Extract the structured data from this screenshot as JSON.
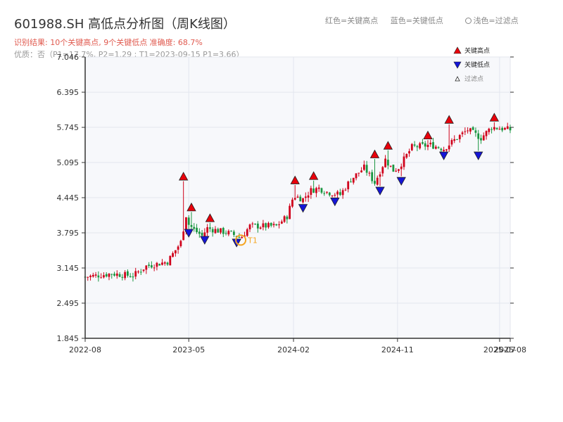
{
  "title": "601988.SH 高低点分析图（周K线图）",
  "result_line": "识别结果: 10个关键高点, 9个关键低点  准确度: 68.7%",
  "quality_line": "优质：否（P1=17.7%, P2=1.29 ; T1=2023-09-15 P1=3.66）",
  "top_legend": {
    "red": "红色=关键高点",
    "blue": "蓝色=关键低点",
    "filtered": "浅色=过滤点"
  },
  "colors": {
    "up": "#d0021b",
    "down": "#1a9641",
    "high_marker": "#e8000b",
    "low_marker": "#1515d6",
    "t1_marker": "#f5a623",
    "plot_bg": "#f7f8fb",
    "grid": "#e3e6ee",
    "axis": "#333333"
  },
  "chart_data": {
    "type": "candlestick",
    "x_start_date": "2022-08-01",
    "x_end_date": "2025-08-25",
    "y_ticks": [
      "1.845",
      "2.495",
      "3.145",
      "3.795",
      "4.445",
      "5.095",
      "5.745",
      "6.395",
      "7.046"
    ],
    "ylim": [
      1.845,
      7.046
    ],
    "x_ticks": [
      {
        "label": "2022-08",
        "date": "2022-08-01"
      },
      {
        "label": "2023-05",
        "date": "2023-05-01"
      },
      {
        "label": "2024-02",
        "date": "2024-02-01"
      },
      {
        "label": "2024-11",
        "date": "2024-11-01"
      },
      {
        "label": "2025-07",
        "date": "2025-07-28"
      },
      {
        "label": "2025-08",
        "date": "2025-08-25"
      }
    ],
    "grid": true,
    "legend": {
      "position": "top-right",
      "entries": [
        {
          "name": "关键高点",
          "marker": "high"
        },
        {
          "name": "关键低点",
          "marker": "low"
        },
        {
          "name": "过滤点",
          "marker": "filtered"
        }
      ]
    },
    "anchors": [
      {
        "date": "2022-08-01",
        "close": 2.98
      },
      {
        "date": "2022-10-10",
        "close": 3.04
      },
      {
        "date": "2022-12-05",
        "close": 3.0
      },
      {
        "date": "2023-01-09",
        "close": 3.18
      },
      {
        "date": "2023-03-06",
        "close": 3.26
      },
      {
        "date": "2023-04-10",
        "close": 3.62
      },
      {
        "date": "2023-04-24",
        "close": 4.12
      },
      {
        "date": "2023-05-01",
        "close": 3.95
      },
      {
        "date": "2023-05-15",
        "close": 3.85
      },
      {
        "date": "2023-06-05",
        "close": 3.74
      },
      {
        "date": "2023-06-19",
        "close": 3.88
      },
      {
        "date": "2023-08-21",
        "close": 3.78
      },
      {
        "date": "2023-09-15",
        "close": 3.7
      },
      {
        "date": "2023-10-09",
        "close": 3.92
      },
      {
        "date": "2023-12-18",
        "close": 3.92
      },
      {
        "date": "2024-01-15",
        "close": 4.1
      },
      {
        "date": "2024-02-01",
        "close": 4.48
      },
      {
        "date": "2024-02-26",
        "close": 4.42
      },
      {
        "date": "2024-03-18",
        "close": 4.58
      },
      {
        "date": "2024-04-08",
        "close": 4.62
      },
      {
        "date": "2024-04-29",
        "close": 4.55
      },
      {
        "date": "2024-06-03",
        "close": 4.5
      },
      {
        "date": "2024-07-01",
        "close": 4.78
      },
      {
        "date": "2024-08-05",
        "close": 5.0
      },
      {
        "date": "2024-09-02",
        "close": 4.72
      },
      {
        "date": "2024-09-30",
        "close": 5.15
      },
      {
        "date": "2024-10-21",
        "close": 4.95
      },
      {
        "date": "2024-11-04",
        "close": 5.0
      },
      {
        "date": "2024-12-09",
        "close": 5.38
      },
      {
        "date": "2025-01-27",
        "close": 5.42
      },
      {
        "date": "2025-03-03",
        "close": 5.35
      },
      {
        "date": "2025-04-07",
        "close": 5.55
      },
      {
        "date": "2025-05-05",
        "close": 5.7
      },
      {
        "date": "2025-06-09",
        "close": 5.55
      },
      {
        "date": "2025-07-07",
        "close": 5.75
      },
      {
        "date": "2025-08-25",
        "close": 5.7
      }
    ],
    "key_highs": [
      {
        "date": "2023-04-17",
        "price": 4.77
      },
      {
        "date": "2023-05-08",
        "price": 4.2
      },
      {
        "date": "2023-06-26",
        "price": 4.0
      },
      {
        "date": "2024-02-05",
        "price": 4.7
      },
      {
        "date": "2024-03-25",
        "price": 4.78
      },
      {
        "date": "2024-09-02",
        "price": 5.18
      },
      {
        "date": "2024-10-07",
        "price": 5.34
      },
      {
        "date": "2025-01-20",
        "price": 5.53
      },
      {
        "date": "2025-03-17",
        "price": 5.82
      },
      {
        "date": "2025-07-14",
        "price": 5.86
      }
    ],
    "key_lows": [
      {
        "date": "2023-05-01",
        "price": 3.86
      },
      {
        "date": "2023-06-12",
        "price": 3.73
      },
      {
        "date": "2023-09-04",
        "price": 3.68
      },
      {
        "date": "2024-02-26",
        "price": 4.32
      },
      {
        "date": "2024-05-20",
        "price": 4.44
      },
      {
        "date": "2024-09-16",
        "price": 4.64
      },
      {
        "date": "2024-11-11",
        "price": 4.82
      },
      {
        "date": "2025-03-03",
        "price": 5.29
      },
      {
        "date": "2025-06-02",
        "price": 5.29
      }
    ],
    "t1": {
      "label": "T1",
      "date": "2023-09-15",
      "price": 3.66
    }
  }
}
